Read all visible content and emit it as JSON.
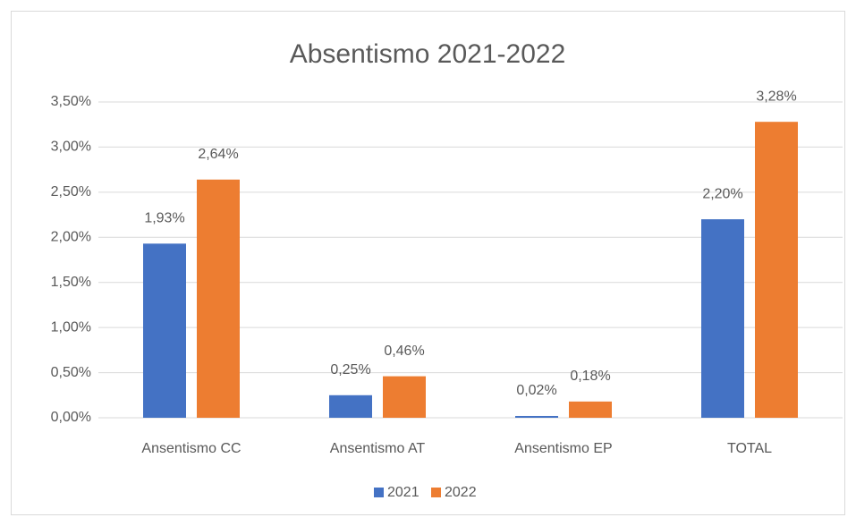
{
  "chart_data": {
    "type": "bar",
    "title": "Absentismo 2021-2022",
    "categories": [
      "Ansentismo CC",
      "Ansentismo AT",
      "Ansentismo EP",
      "TOTAL"
    ],
    "series": [
      {
        "name": "2021",
        "color": "#4472c4",
        "values": [
          1.93,
          0.25,
          0.02,
          2.2
        ],
        "value_labels": [
          "1,93%",
          "0,25%",
          "0,02%",
          "2,20%"
        ]
      },
      {
        "name": "2022",
        "color": "#ed7d31",
        "values": [
          2.64,
          0.46,
          0.18,
          3.28
        ],
        "value_labels": [
          "2,64%",
          "0,46%",
          "0,18%",
          "3,28%"
        ]
      }
    ],
    "ylim": [
      0,
      3.5
    ],
    "yticks": [
      {
        "value": 0,
        "label": "0,00%"
      },
      {
        "value": 0.5,
        "label": "0,50%"
      },
      {
        "value": 1,
        "label": "1,00%"
      },
      {
        "value": 1.5,
        "label": "1,50%"
      },
      {
        "value": 2,
        "label": "2,00%"
      },
      {
        "value": 2.5,
        "label": "2,50%"
      },
      {
        "value": 3,
        "label": "3,00%"
      },
      {
        "value": 3.5,
        "label": "3,50%"
      }
    ],
    "grid": true,
    "legend": "bottom"
  }
}
